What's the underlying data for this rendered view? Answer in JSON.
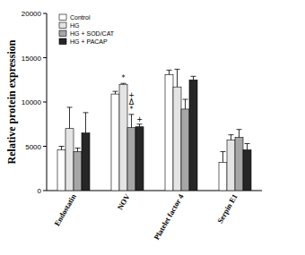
{
  "chart_data": {
    "type": "bar",
    "y_label": "Relative protein expression",
    "categories": [
      "Endostatin",
      "NOV",
      "Platelet factor 4",
      "Serpin E1"
    ],
    "series": [
      {
        "name": "Control",
        "color": "#ffffff",
        "values": [
          4600,
          10900,
          13100,
          3200
        ],
        "errors": [
          400,
          300,
          500,
          1200
        ]
      },
      {
        "name": "HG",
        "color": "#e4e4e4",
        "values": [
          7000,
          12000,
          11700,
          5700
        ],
        "errors": [
          2400,
          100,
          2000,
          600
        ]
      },
      {
        "name": "HG + SOD/CAT",
        "color": "#a6a6a6",
        "values": [
          4400,
          7100,
          9200,
          6000
        ],
        "errors": [
          400,
          1500,
          1100,
          900
        ]
      },
      {
        "name": "HG + PACAP",
        "color": "#262626",
        "values": [
          6500,
          7200,
          12500,
          4600
        ],
        "errors": [
          2300,
          300,
          400,
          700
        ]
      }
    ],
    "annotations": [
      {
        "text": "*",
        "series": "HG",
        "category": "NOV"
      },
      {
        "text": "*",
        "series": "HG + SOD/CAT",
        "category": "NOV"
      },
      {
        "text": "Δ",
        "series": "HG + SOD/CAT",
        "category": "NOV"
      },
      {
        "text": "+",
        "series": "HG + SOD/CAT",
        "category": "NOV"
      },
      {
        "text": "+",
        "series": "HG + PACAP",
        "category": "NOV"
      }
    ],
    "ylim": [
      0,
      20000
    ],
    "yticks": [
      0,
      5000,
      10000,
      15000,
      20000
    ],
    "legend": "top-left",
    "grid": false
  }
}
